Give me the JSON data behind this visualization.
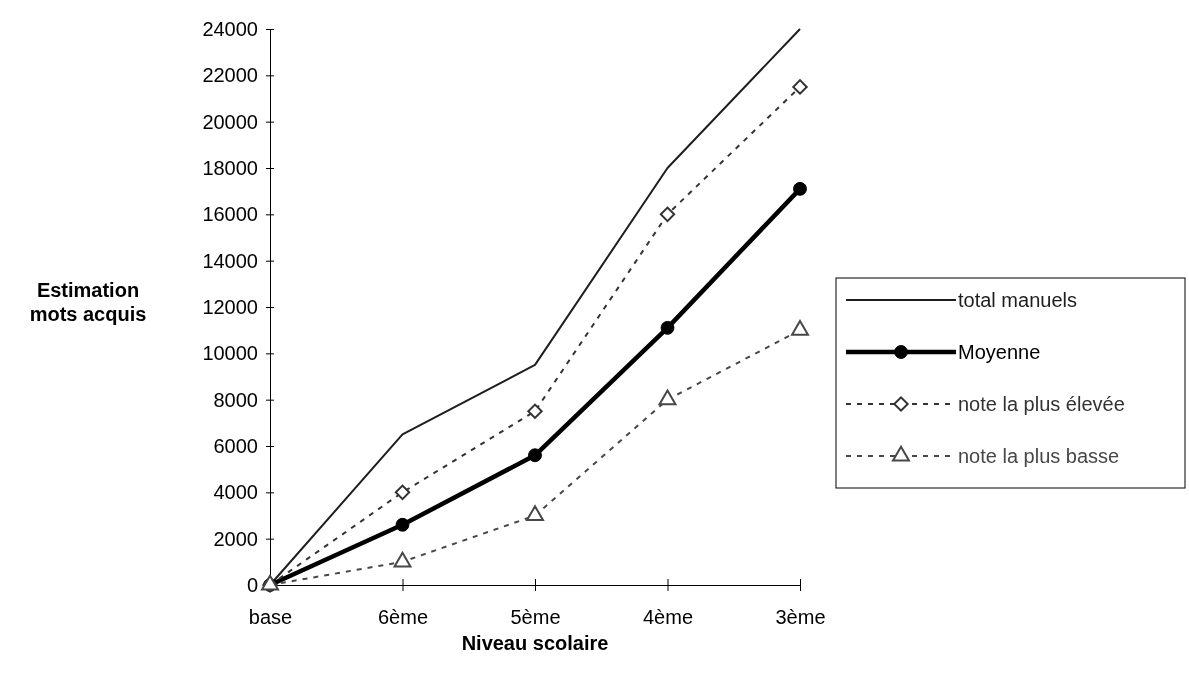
{
  "chart_data": {
    "type": "line",
    "xlabel": "Niveau scolaire",
    "ylabel": "Estimation\nmots acquis",
    "categories": [
      "base",
      "6ème",
      "5ème",
      "4ème",
      "3ème"
    ],
    "ylim": [
      0,
      24000
    ],
    "yticks": [
      0,
      2000,
      4000,
      6000,
      8000,
      10000,
      12000,
      14000,
      16000,
      18000,
      20000,
      22000,
      24000
    ],
    "grid": false,
    "legend": "right",
    "series": [
      {
        "name": "total manuels",
        "color": "#1e1e1e",
        "marker": "none",
        "line_style": "solid",
        "values": [
          0,
          6500,
          9500,
          18000,
          24000
        ]
      },
      {
        "name": "Moyenne",
        "color": "#000000",
        "marker": "circle",
        "line_style": "solid",
        "values": [
          0,
          2600,
          5600,
          11100,
          17100
        ]
      },
      {
        "name": "note la plus élevée",
        "color": "#333333",
        "marker": "diamond",
        "line_style": "dashed",
        "values": [
          0,
          4000,
          7500,
          16000,
          21500
        ]
      },
      {
        "name": "note la plus basse",
        "color": "#474747",
        "marker": "triangle",
        "line_style": "dashed",
        "values": [
          0,
          1000,
          3000,
          8000,
          11000
        ]
      }
    ]
  }
}
